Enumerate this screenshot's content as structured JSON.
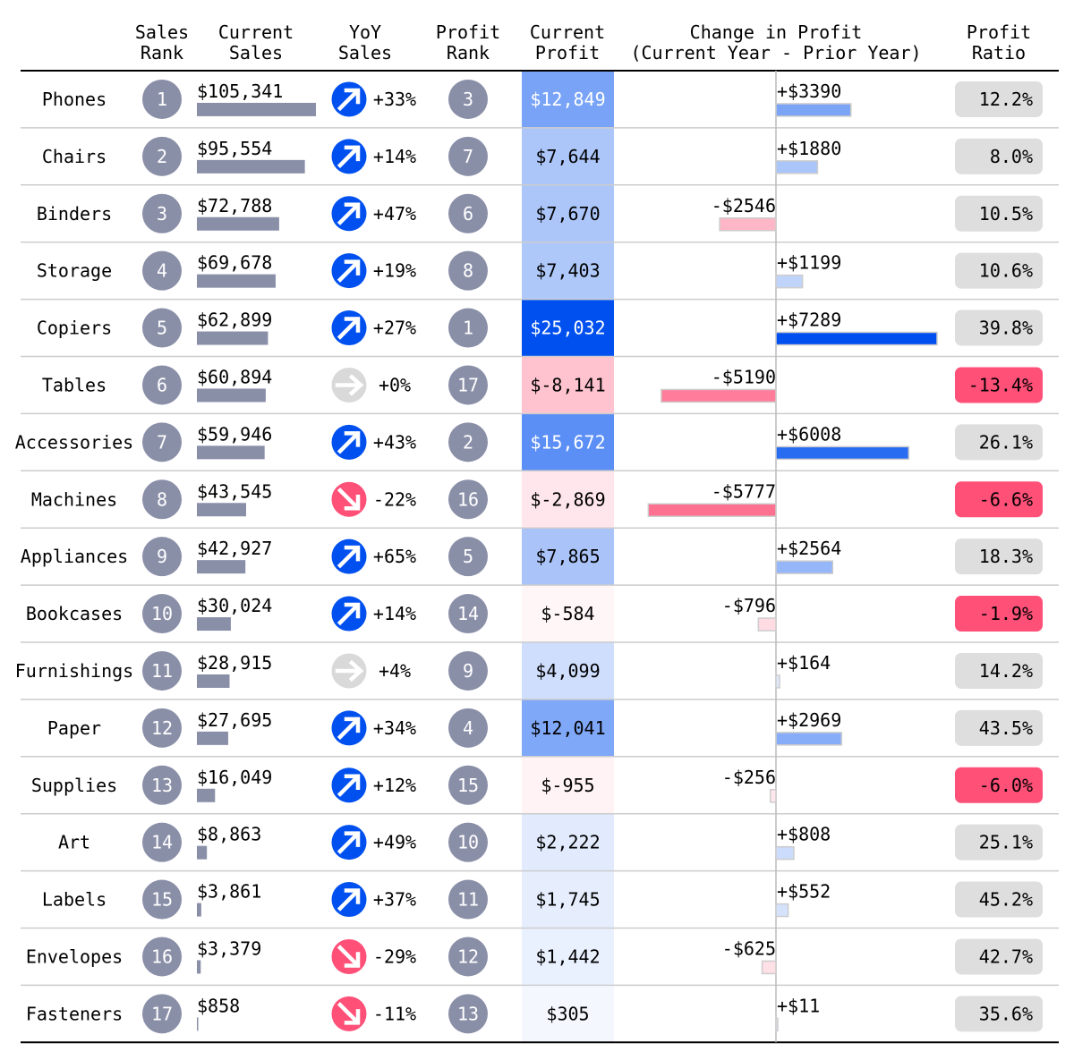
{
  "chart_data": {
    "type": "table",
    "columns": {
      "category": "",
      "sales_rank": [
        "Sales",
        "Rank"
      ],
      "current_sales": [
        "Current",
        "Sales"
      ],
      "yoy_sales": [
        "YoY",
        "Sales"
      ],
      "profit_rank": [
        "Profit",
        "Rank"
      ],
      "current_profit": [
        "Current",
        "Profit"
      ],
      "change_in_profit": [
        "Change in Profit",
        "(Current Year - Prior Year)"
      ],
      "profit_ratio": [
        "Profit",
        "Ratio"
      ]
    },
    "rows": [
      {
        "category": "Phones",
        "sales_rank": "1",
        "sales": 105341,
        "sales_label": "$105,341",
        "yoy_dir": "up",
        "yoy_label": "+33%",
        "profit_rank": "3",
        "profit": 12849,
        "profit_label": "$12,849",
        "change": 3390,
        "change_label": "+$3390",
        "ratio": 12.2,
        "ratio_label": "12.2%"
      },
      {
        "category": "Chairs",
        "sales_rank": "2",
        "sales": 95554,
        "sales_label": "$95,554",
        "yoy_dir": "up",
        "yoy_label": "+14%",
        "profit_rank": "7",
        "profit": 7644,
        "profit_label": "$7,644",
        "change": 1880,
        "change_label": "+$1880",
        "ratio": 8.0,
        "ratio_label": "8.0%"
      },
      {
        "category": "Binders",
        "sales_rank": "3",
        "sales": 72788,
        "sales_label": "$72,788",
        "yoy_dir": "up",
        "yoy_label": "+47%",
        "profit_rank": "6",
        "profit": 7670,
        "profit_label": "$7,670",
        "change": -2546,
        "change_label": "-$2546",
        "ratio": 10.5,
        "ratio_label": "10.5%"
      },
      {
        "category": "Storage",
        "sales_rank": "4",
        "sales": 69678,
        "sales_label": "$69,678",
        "yoy_dir": "up",
        "yoy_label": "+19%",
        "profit_rank": "8",
        "profit": 7403,
        "profit_label": "$7,403",
        "change": 1199,
        "change_label": "+$1199",
        "ratio": 10.6,
        "ratio_label": "10.6%"
      },
      {
        "category": "Copiers",
        "sales_rank": "5",
        "sales": 62899,
        "sales_label": "$62,899",
        "yoy_dir": "up",
        "yoy_label": "+27%",
        "profit_rank": "1",
        "profit": 25032,
        "profit_label": "$25,032",
        "change": 7289,
        "change_label": "+$7289",
        "ratio": 39.8,
        "ratio_label": "39.8%"
      },
      {
        "category": "Tables",
        "sales_rank": "6",
        "sales": 60894,
        "sales_label": "$60,894",
        "yoy_dir": "flat",
        "yoy_label": "+0%",
        "profit_rank": "17",
        "profit": -8141,
        "profit_label": "$-8,141",
        "change": -5190,
        "change_label": "-$5190",
        "ratio": -13.4,
        "ratio_label": "-13.4%"
      },
      {
        "category": "Accessories",
        "sales_rank": "7",
        "sales": 59946,
        "sales_label": "$59,946",
        "yoy_dir": "up",
        "yoy_label": "+43%",
        "profit_rank": "2",
        "profit": 15672,
        "profit_label": "$15,672",
        "change": 6008,
        "change_label": "+$6008",
        "ratio": 26.1,
        "ratio_label": "26.1%"
      },
      {
        "category": "Machines",
        "sales_rank": "8",
        "sales": 43545,
        "sales_label": "$43,545",
        "yoy_dir": "down",
        "yoy_label": "-22%",
        "profit_rank": "16",
        "profit": -2869,
        "profit_label": "$-2,869",
        "change": -5777,
        "change_label": "-$5777",
        "ratio": -6.6,
        "ratio_label": "-6.6%"
      },
      {
        "category": "Appliances",
        "sales_rank": "9",
        "sales": 42927,
        "sales_label": "$42,927",
        "yoy_dir": "up",
        "yoy_label": "+65%",
        "profit_rank": "5",
        "profit": 7865,
        "profit_label": "$7,865",
        "change": 2564,
        "change_label": "+$2564",
        "ratio": 18.3,
        "ratio_label": "18.3%"
      },
      {
        "category": "Bookcases",
        "sales_rank": "10",
        "sales": 30024,
        "sales_label": "$30,024",
        "yoy_dir": "up",
        "yoy_label": "+14%",
        "profit_rank": "14",
        "profit": -584,
        "profit_label": "$-584",
        "change": -796,
        "change_label": "-$796",
        "ratio": -1.9,
        "ratio_label": "-1.9%"
      },
      {
        "category": "Furnishings",
        "sales_rank": "11",
        "sales": 28915,
        "sales_label": "$28,915",
        "yoy_dir": "flat",
        "yoy_label": "+4%",
        "profit_rank": "9",
        "profit": 4099,
        "profit_label": "$4,099",
        "change": 164,
        "change_label": "+$164",
        "ratio": 14.2,
        "ratio_label": "14.2%"
      },
      {
        "category": "Paper",
        "sales_rank": "12",
        "sales": 27695,
        "sales_label": "$27,695",
        "yoy_dir": "up",
        "yoy_label": "+34%",
        "profit_rank": "4",
        "profit": 12041,
        "profit_label": "$12,041",
        "change": 2969,
        "change_label": "+$2969",
        "ratio": 43.5,
        "ratio_label": "43.5%"
      },
      {
        "category": "Supplies",
        "sales_rank": "13",
        "sales": 16049,
        "sales_label": "$16,049",
        "yoy_dir": "up",
        "yoy_label": "+12%",
        "profit_rank": "15",
        "profit": -955,
        "profit_label": "$-955",
        "change": -256,
        "change_label": "-$256",
        "ratio": -6.0,
        "ratio_label": "-6.0%"
      },
      {
        "category": "Art",
        "sales_rank": "14",
        "sales": 8863,
        "sales_label": "$8,863",
        "yoy_dir": "up",
        "yoy_label": "+49%",
        "profit_rank": "10",
        "profit": 2222,
        "profit_label": "$2,222",
        "change": 808,
        "change_label": "+$808",
        "ratio": 25.1,
        "ratio_label": "25.1%"
      },
      {
        "category": "Labels",
        "sales_rank": "15",
        "sales": 3861,
        "sales_label": "$3,861",
        "yoy_dir": "up",
        "yoy_label": "+37%",
        "profit_rank": "11",
        "profit": 1745,
        "profit_label": "$1,745",
        "change": 552,
        "change_label": "+$552",
        "ratio": 45.2,
        "ratio_label": "45.2%"
      },
      {
        "category": "Envelopes",
        "sales_rank": "16",
        "sales": 3379,
        "sales_label": "$3,379",
        "yoy_dir": "down",
        "yoy_label": "-29%",
        "profit_rank": "12",
        "profit": 1442,
        "profit_label": "$1,442",
        "change": -625,
        "change_label": "-$625",
        "ratio": 42.7,
        "ratio_label": "42.7%"
      },
      {
        "category": "Fasteners",
        "sales_rank": "17",
        "sales": 858,
        "sales_label": "$858",
        "yoy_dir": "down",
        "yoy_label": "-11%",
        "profit_rank": "13",
        "profit": 305,
        "profit_label": "$305",
        "change": 11,
        "change_label": "+$11",
        "ratio": 35.6,
        "ratio_label": "35.6%"
      }
    ]
  },
  "colors": {
    "rank_circle": "#8a8fa8",
    "sales_bar": "#8a8fa8",
    "positive": "#0050f0",
    "negative": "#ff5078",
    "neutral_icon": "#d9d9d9",
    "ratio_badge": "#dedede",
    "rule_dark": "#000000",
    "rule_light": "#cccccc"
  },
  "icons": {
    "up": "arrow-up-right-icon",
    "down": "arrow-down-right-icon",
    "flat": "arrow-right-icon"
  }
}
